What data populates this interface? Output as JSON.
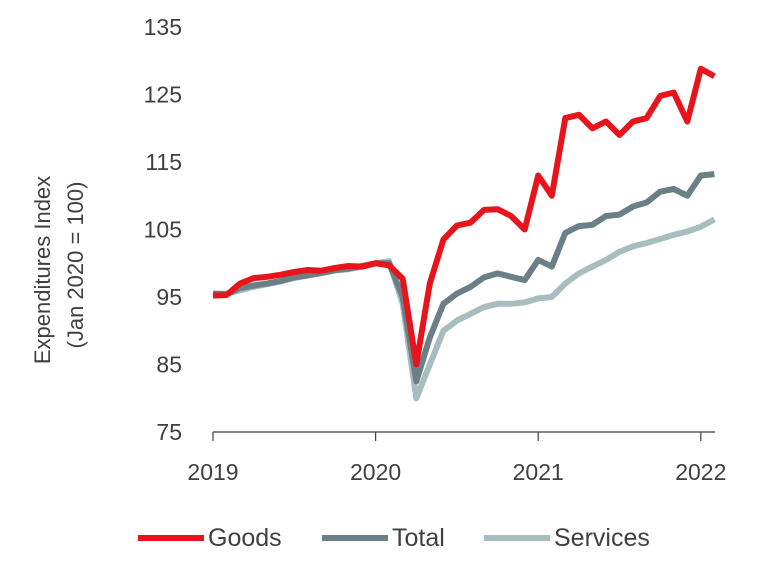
{
  "chart_data": {
    "type": "line",
    "title": "",
    "xlabel": "",
    "ylabel": "Expenditures Index",
    "ylabel_sub": "(Jan 2020 = 100)",
    "ylim": [
      75,
      135
    ],
    "yticks": [
      "75",
      "85",
      "95",
      "105",
      "115",
      "125",
      "135"
    ],
    "xticks": [
      "2019",
      "2020",
      "2021",
      "2022"
    ],
    "xlim_months": [
      "2019-01",
      "2022-02"
    ],
    "grid": false,
    "legend_position": "bottom",
    "x": [
      "2019-01",
      "2019-02",
      "2019-03",
      "2019-04",
      "2019-05",
      "2019-06",
      "2019-07",
      "2019-08",
      "2019-09",
      "2019-10",
      "2019-11",
      "2019-12",
      "2020-01",
      "2020-02",
      "2020-03",
      "2020-04",
      "2020-05",
      "2020-06",
      "2020-07",
      "2020-08",
      "2020-09",
      "2020-10",
      "2020-11",
      "2020-12",
      "2021-01",
      "2021-02",
      "2021-03",
      "2021-04",
      "2021-05",
      "2021-06",
      "2021-07",
      "2021-08",
      "2021-09",
      "2021-10",
      "2021-11",
      "2021-12",
      "2022-01",
      "2022-02"
    ],
    "series": [
      {
        "name": "Goods",
        "color": "#e8141c",
        "values": [
          95.2,
          95.3,
          97.0,
          97.8,
          98.0,
          98.3,
          98.7,
          99.0,
          98.9,
          99.3,
          99.6,
          99.5,
          100.0,
          99.7,
          97.7,
          85.0,
          97.0,
          103.5,
          105.6,
          106.0,
          107.9,
          108.0,
          107.0,
          105.0,
          113.0,
          110.0,
          121.5,
          122.0,
          120.0,
          121.0,
          119.0,
          121.0,
          121.5,
          124.8,
          125.3,
          121.0,
          128.8,
          127.7
        ]
      },
      {
        "name": "Total",
        "color": "#6b7f87",
        "values": [
          95.5,
          95.4,
          96.3,
          96.7,
          97.0,
          97.4,
          97.9,
          98.2,
          98.6,
          99.0,
          99.2,
          99.6,
          100.0,
          100.0,
          95.0,
          82.5,
          89.0,
          94.0,
          95.5,
          96.5,
          97.9,
          98.5,
          98.0,
          97.5,
          100.5,
          99.5,
          104.5,
          105.5,
          105.7,
          107.0,
          107.2,
          108.4,
          109.0,
          110.6,
          111.0,
          110.0,
          113.0,
          113.2
        ]
      },
      {
        "name": "Services",
        "color": "#a8bdc0",
        "values": [
          95.5,
          95.5,
          96.0,
          96.5,
          96.9,
          97.3,
          97.8,
          98.2,
          98.5,
          98.9,
          99.1,
          99.5,
          100.0,
          100.3,
          94.0,
          80.0,
          85.0,
          90.0,
          91.5,
          92.5,
          93.5,
          94.0,
          94.0,
          94.2,
          94.8,
          95.0,
          97.0,
          98.5,
          99.5,
          100.5,
          101.7,
          102.5,
          103.0,
          103.6,
          104.2,
          104.7,
          105.4,
          106.5
        ]
      }
    ]
  }
}
